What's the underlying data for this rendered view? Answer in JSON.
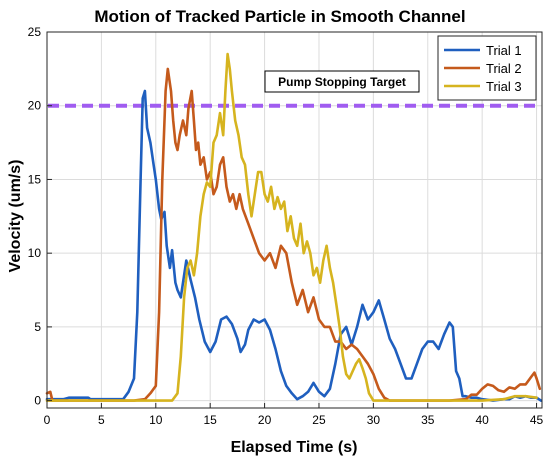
{
  "chart_data": {
    "type": "line",
    "title": "Motion of Tracked Particle in Smooth Channel",
    "xlabel": "Elapsed Time (s)",
    "ylabel": "Velocity (um/s)",
    "xlim": [
      0,
      45.5
    ],
    "ylim": [
      -0.5,
      25
    ],
    "xticks": [
      0,
      5,
      10,
      15,
      20,
      25,
      30,
      35,
      40,
      45
    ],
    "yticks": [
      0,
      5,
      10,
      15,
      20,
      25
    ],
    "grid": true,
    "legend_position": "top-right",
    "reference_line": {
      "label": "Pump Stopping Target",
      "y": 20,
      "color": "#a05cf0",
      "style": "dashed"
    },
    "series": [
      {
        "name": "Trial 1",
        "color": "#1f5fbf",
        "points": [
          [
            0,
            0.1
          ],
          [
            1.5,
            0.1
          ],
          [
            2,
            0.2
          ],
          [
            3.8,
            0.2
          ],
          [
            4,
            0.1
          ],
          [
            6.5,
            0.1
          ],
          [
            7,
            0.1
          ],
          [
            7.5,
            0.6
          ],
          [
            8,
            1.5
          ],
          [
            8.3,
            6
          ],
          [
            8.6,
            15
          ],
          [
            8.8,
            20.5
          ],
          [
            9,
            21
          ],
          [
            9.2,
            18.5
          ],
          [
            9.5,
            17.5
          ],
          [
            9.8,
            16
          ],
          [
            10,
            15
          ],
          [
            10.3,
            13
          ],
          [
            10.5,
            12.3
          ],
          [
            10.8,
            12.8
          ],
          [
            11,
            10.5
          ],
          [
            11.3,
            9
          ],
          [
            11.5,
            10.2
          ],
          [
            11.8,
            8
          ],
          [
            12,
            7.5
          ],
          [
            12.3,
            7
          ],
          [
            12.5,
            8
          ],
          [
            12.8,
            9.5
          ],
          [
            13.2,
            8.2
          ],
          [
            13.6,
            7
          ],
          [
            14,
            5.5
          ],
          [
            14.5,
            4
          ],
          [
            15,
            3.3
          ],
          [
            15.5,
            4
          ],
          [
            16,
            5.5
          ],
          [
            16.5,
            5.7
          ],
          [
            17,
            5.2
          ],
          [
            17.5,
            4.2
          ],
          [
            17.8,
            3.3
          ],
          [
            18.2,
            3.8
          ],
          [
            18.5,
            4.8
          ],
          [
            19,
            5.5
          ],
          [
            19.5,
            5.3
          ],
          [
            20,
            5.5
          ],
          [
            20.5,
            4.8
          ],
          [
            21,
            3.5
          ],
          [
            21.5,
            2
          ],
          [
            22,
            1
          ],
          [
            22.5,
            0.5
          ],
          [
            23,
            0.1
          ],
          [
            23.5,
            0.3
          ],
          [
            24,
            0.6
          ],
          [
            24.5,
            1.2
          ],
          [
            25,
            0.6
          ],
          [
            25.5,
            0.3
          ],
          [
            26,
            0.8
          ],
          [
            26.5,
            2.5
          ],
          [
            27,
            4.5
          ],
          [
            27.5,
            5
          ],
          [
            28,
            3.8
          ],
          [
            28.5,
            5
          ],
          [
            29,
            6.5
          ],
          [
            29.5,
            5.5
          ],
          [
            30,
            6
          ],
          [
            30.5,
            6.8
          ],
          [
            31,
            5.5
          ],
          [
            31.5,
            4.2
          ],
          [
            32,
            3.5
          ],
          [
            32.5,
            2.5
          ],
          [
            33,
            1.5
          ],
          [
            33.5,
            1.5
          ],
          [
            34,
            2.5
          ],
          [
            34.5,
            3.5
          ],
          [
            35,
            4
          ],
          [
            35.5,
            4
          ],
          [
            36,
            3.5
          ],
          [
            36.5,
            4.5
          ],
          [
            37,
            5.3
          ],
          [
            37.3,
            5
          ],
          [
            37.6,
            2
          ],
          [
            37.9,
            1.5
          ],
          [
            38.2,
            0.3
          ],
          [
            38.5,
            0.3
          ],
          [
            39,
            0.2
          ],
          [
            39.5,
            0.2
          ],
          [
            40,
            0.1
          ],
          [
            41,
            0
          ],
          [
            42,
            0.1
          ],
          [
            42.5,
            0.1
          ],
          [
            43,
            0.3
          ],
          [
            43.5,
            0.2
          ],
          [
            44,
            0.3
          ],
          [
            44.5,
            0.2
          ],
          [
            45,
            0.2
          ],
          [
            45.4,
            0
          ]
        ]
      },
      {
        "name": "Trial 2",
        "color": "#c55a1c",
        "points": [
          [
            0,
            0.5
          ],
          [
            0.3,
            0.6
          ],
          [
            0.5,
            0
          ],
          [
            1,
            0
          ],
          [
            4,
            0
          ],
          [
            6,
            0
          ],
          [
            8,
            0
          ],
          [
            9,
            0.1
          ],
          [
            9.5,
            0.5
          ],
          [
            10,
            1
          ],
          [
            10.3,
            6
          ],
          [
            10.6,
            15
          ],
          [
            10.9,
            21
          ],
          [
            11.1,
            22.5
          ],
          [
            11.4,
            21
          ],
          [
            11.6,
            19
          ],
          [
            11.8,
            17.5
          ],
          [
            12,
            17
          ],
          [
            12.2,
            18
          ],
          [
            12.5,
            19
          ],
          [
            12.8,
            18
          ],
          [
            13,
            19.8
          ],
          [
            13.3,
            21
          ],
          [
            13.5,
            19
          ],
          [
            13.7,
            17
          ],
          [
            13.9,
            17.5
          ],
          [
            14.1,
            16
          ],
          [
            14.4,
            16.5
          ],
          [
            14.7,
            15
          ],
          [
            15,
            15.5
          ],
          [
            15.3,
            14
          ],
          [
            15.6,
            14.5
          ],
          [
            15.9,
            16
          ],
          [
            16.2,
            16.5
          ],
          [
            16.5,
            14.5
          ],
          [
            16.8,
            13.5
          ],
          [
            17.1,
            14
          ],
          [
            17.4,
            13
          ],
          [
            17.7,
            14
          ],
          [
            18,
            13
          ],
          [
            18.5,
            12
          ],
          [
            19,
            11
          ],
          [
            19.5,
            10
          ],
          [
            20,
            9.5
          ],
          [
            20.5,
            10
          ],
          [
            21,
            9
          ],
          [
            21.5,
            10.5
          ],
          [
            22,
            10
          ],
          [
            22.5,
            8
          ],
          [
            23,
            6.5
          ],
          [
            23.5,
            7.5
          ],
          [
            24,
            6
          ],
          [
            24.5,
            7
          ],
          [
            25,
            5.5
          ],
          [
            25.5,
            5
          ],
          [
            26,
            5
          ],
          [
            26.5,
            4
          ],
          [
            27,
            4
          ],
          [
            27.5,
            3.5
          ],
          [
            28,
            3.8
          ],
          [
            28.5,
            3.5
          ],
          [
            29,
            3
          ],
          [
            29.5,
            2.5
          ],
          [
            30,
            1.8
          ],
          [
            30.5,
            0.8
          ],
          [
            31,
            0.2
          ],
          [
            31.5,
            0
          ],
          [
            33,
            0
          ],
          [
            35,
            0
          ],
          [
            37,
            0
          ],
          [
            38.5,
            0.1
          ],
          [
            39,
            0.4
          ],
          [
            39.5,
            0.4
          ],
          [
            40,
            0.8
          ],
          [
            40.5,
            1.1
          ],
          [
            41,
            1
          ],
          [
            41.5,
            0.7
          ],
          [
            42,
            0.6
          ],
          [
            42.5,
            0.9
          ],
          [
            43,
            0.8
          ],
          [
            43.5,
            1.1
          ],
          [
            44,
            1.1
          ],
          [
            44.5,
            1.6
          ],
          [
            44.8,
            1.9
          ],
          [
            45,
            1.5
          ],
          [
            45.3,
            0.8
          ]
        ]
      },
      {
        "name": "Trial 3",
        "color": "#d6b41f",
        "points": [
          [
            0,
            0
          ],
          [
            2,
            0
          ],
          [
            5,
            0
          ],
          [
            8,
            0
          ],
          [
            10,
            0
          ],
          [
            11.5,
            0
          ],
          [
            12,
            0.5
          ],
          [
            12.3,
            3
          ],
          [
            12.6,
            7
          ],
          [
            12.9,
            9
          ],
          [
            13.2,
            9.5
          ],
          [
            13.5,
            8.5
          ],
          [
            13.8,
            10
          ],
          [
            14.1,
            12.5
          ],
          [
            14.4,
            14
          ],
          [
            14.7,
            14.8
          ],
          [
            15,
            14.5
          ],
          [
            15.3,
            17.5
          ],
          [
            15.6,
            18
          ],
          [
            15.9,
            19.5
          ],
          [
            16.2,
            18
          ],
          [
            16.4,
            21
          ],
          [
            16.6,
            23.5
          ],
          [
            16.8,
            22.5
          ],
          [
            17,
            21
          ],
          [
            17.3,
            19
          ],
          [
            17.6,
            18
          ],
          [
            17.9,
            16.5
          ],
          [
            18.2,
            16
          ],
          [
            18.5,
            14
          ],
          [
            18.8,
            12.5
          ],
          [
            19.1,
            14
          ],
          [
            19.4,
            15.5
          ],
          [
            19.7,
            15.5
          ],
          [
            20,
            14
          ],
          [
            20.3,
            13.5
          ],
          [
            20.6,
            14.5
          ],
          [
            20.9,
            13
          ],
          [
            21.2,
            13.8
          ],
          [
            21.5,
            13
          ],
          [
            21.8,
            13.5
          ],
          [
            22.1,
            11.5
          ],
          [
            22.4,
            12.5
          ],
          [
            22.7,
            11
          ],
          [
            23,
            10.5
          ],
          [
            23.3,
            12
          ],
          [
            23.6,
            10
          ],
          [
            23.9,
            10.8
          ],
          [
            24.2,
            10
          ],
          [
            24.5,
            8.5
          ],
          [
            24.8,
            9
          ],
          [
            25.1,
            8
          ],
          [
            25.4,
            9.5
          ],
          [
            25.7,
            10.5
          ],
          [
            26,
            9
          ],
          [
            26.3,
            8
          ],
          [
            26.6,
            6.5
          ],
          [
            26.9,
            5
          ],
          [
            27.2,
            3
          ],
          [
            27.5,
            1.8
          ],
          [
            27.8,
            1.5
          ],
          [
            28.1,
            2
          ],
          [
            28.4,
            2.5
          ],
          [
            28.7,
            2.8
          ],
          [
            29,
            2.2
          ],
          [
            29.3,
            1.5
          ],
          [
            29.6,
            0.5
          ],
          [
            30,
            0
          ],
          [
            32,
            0
          ],
          [
            35,
            0
          ],
          [
            38,
            0
          ],
          [
            40,
            0
          ],
          [
            42,
            0.1
          ],
          [
            43,
            0.3
          ],
          [
            44,
            0.3
          ],
          [
            45,
            0.2
          ]
        ]
      }
    ]
  }
}
